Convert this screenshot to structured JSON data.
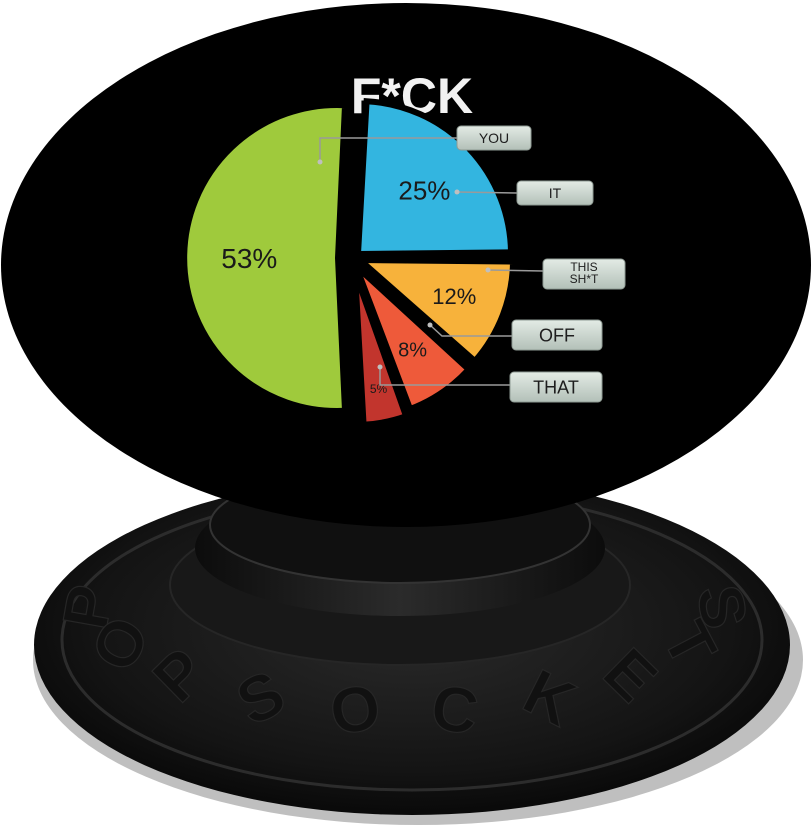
{
  "product": {
    "brand": "POPSOCKETS",
    "title": "F*CK"
  },
  "colors": {
    "background": "#ffffff",
    "cap": "#000000",
    "base": "#0f0f0f",
    "title": "#f2f2f2",
    "label_box": "#c9d4cc"
  },
  "chart_data": {
    "type": "pie",
    "title": "F*CK",
    "slices": [
      {
        "label": "YOU",
        "value": 53,
        "value_label": "53%",
        "color": "#9fca3c"
      },
      {
        "label": "IT",
        "value": 25,
        "value_label": "25%",
        "color": "#33b5e0"
      },
      {
        "label": "THIS SH*T",
        "value": 12,
        "value_label": "12%",
        "color": "#f7b23b"
      },
      {
        "label": "OFF",
        "value": 8,
        "value_label": "8%",
        "color": "#ee5a3a"
      },
      {
        "label": "THAT",
        "value": 5,
        "value_label": "5%",
        "color": "#c2352d"
      }
    ]
  }
}
